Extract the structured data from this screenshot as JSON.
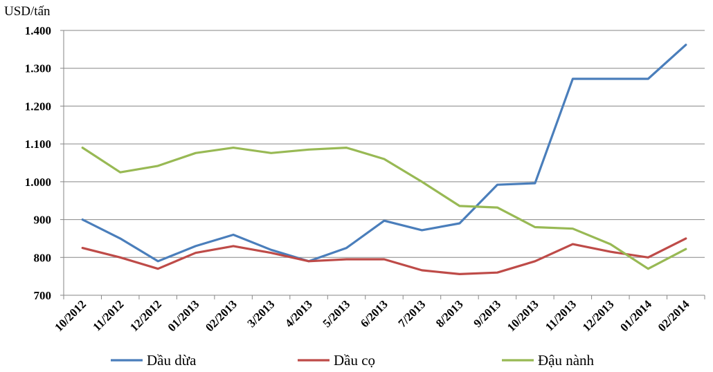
{
  "chart_data": {
    "type": "line",
    "y_unit": "USD/tấn",
    "categories": [
      "10/2012",
      "11/2012",
      "12/2012",
      "01/2013",
      "02/2013",
      "3/2013",
      "4/2013",
      "5/2013",
      "6/2013",
      "7/2013",
      "8/2013",
      "9/2013",
      "10/2013",
      "11/2013",
      "12/2013",
      "01/2014",
      "02/2014"
    ],
    "ylim": [
      700,
      1400
    ],
    "yticks": [
      700,
      800,
      900,
      1000,
      1100,
      1200,
      1300,
      1400
    ],
    "ytick_labels": [
      "700",
      "800",
      "900",
      "1.000",
      "1.100",
      "1.200",
      "1.300",
      "1.400"
    ],
    "grid": "horizontal",
    "legend_position": "bottom",
    "series": [
      {
        "name": "Dầu dừa",
        "color": "#4a7ebb",
        "values": [
          900,
          850,
          790,
          830,
          860,
          820,
          790,
          825,
          897,
          872,
          890,
          992,
          996,
          1272,
          1272,
          1272,
          1362
        ]
      },
      {
        "name": "Dầu cọ",
        "color": "#be4b48",
        "values": [
          825,
          800,
          770,
          812,
          830,
          812,
          790,
          795,
          795,
          766,
          756,
          760,
          790,
          835,
          815,
          800,
          850
        ]
      },
      {
        "name": "Đậu nành",
        "color": "#98b954",
        "values": [
          1090,
          1025,
          1042,
          1076,
          1090,
          1076,
          1085,
          1090,
          1060,
          1000,
          936,
          932,
          880,
          876,
          835,
          770,
          822
        ]
      }
    ]
  }
}
